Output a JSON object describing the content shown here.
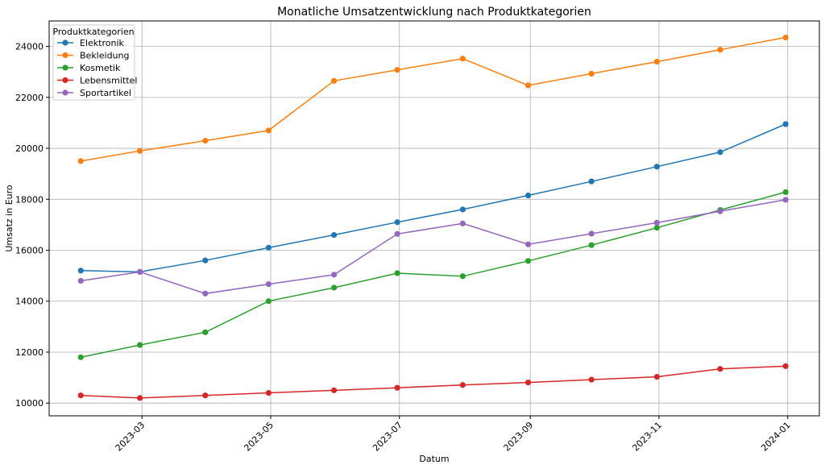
{
  "chart_data": {
    "type": "line",
    "title": "Monatliche Umsatzentwicklung nach Produktkategorien",
    "xlabel": "Datum",
    "ylabel": "Umsatz in Euro",
    "legend_title": "Produktkategorien",
    "legend_position": "top-left",
    "grid": true,
    "x": [
      "2023-01-31",
      "2023-02-28",
      "2023-03-31",
      "2023-04-30",
      "2023-05-31",
      "2023-06-30",
      "2023-07-31",
      "2023-08-31",
      "2023-09-30",
      "2023-10-31",
      "2023-11-30",
      "2023-12-31"
    ],
    "xticks": [
      "2023-03",
      "2023-05",
      "2023-07",
      "2023-09",
      "2023-11",
      "2024-01"
    ],
    "xtick_dates": [
      "2023-03-01",
      "2023-05-01",
      "2023-07-01",
      "2023-09-01",
      "2023-11-01",
      "2024-01-01"
    ],
    "xlim": [
      "2023-01-16",
      "2024-01-16"
    ],
    "yticks": [
      10000,
      12000,
      14000,
      16000,
      18000,
      20000,
      22000,
      24000
    ],
    "ylim": [
      9500,
      25000
    ],
    "series": [
      {
        "name": "Elektronik",
        "color": "#1f77b4",
        "values": [
          15200,
          15150,
          15600,
          16100,
          16600,
          17100,
          17600,
          18150,
          18700,
          19280,
          19850,
          20950
        ]
      },
      {
        "name": "Bekleidung",
        "color": "#ff7f0e",
        "values": [
          19500,
          19900,
          20300,
          20700,
          22650,
          23080,
          23520,
          22470,
          22930,
          23400,
          23870,
          24350
        ]
      },
      {
        "name": "Kosmetik",
        "color": "#2ca02c",
        "values": [
          11800,
          12280,
          12780,
          14000,
          14530,
          15100,
          14980,
          15580,
          16200,
          16880,
          17580,
          18280
        ]
      },
      {
        "name": "Lebensmittel",
        "color": "#d62728",
        "values": [
          10300,
          10200,
          10300,
          10400,
          10500,
          10600,
          10710,
          10810,
          10920,
          11030,
          11340,
          11450
        ]
      },
      {
        "name": "Sportartikel",
        "color": "#9467bd",
        "values": [
          14800,
          15150,
          14300,
          14670,
          15040,
          16640,
          17050,
          16230,
          16650,
          17080,
          17530,
          17980
        ]
      }
    ]
  }
}
